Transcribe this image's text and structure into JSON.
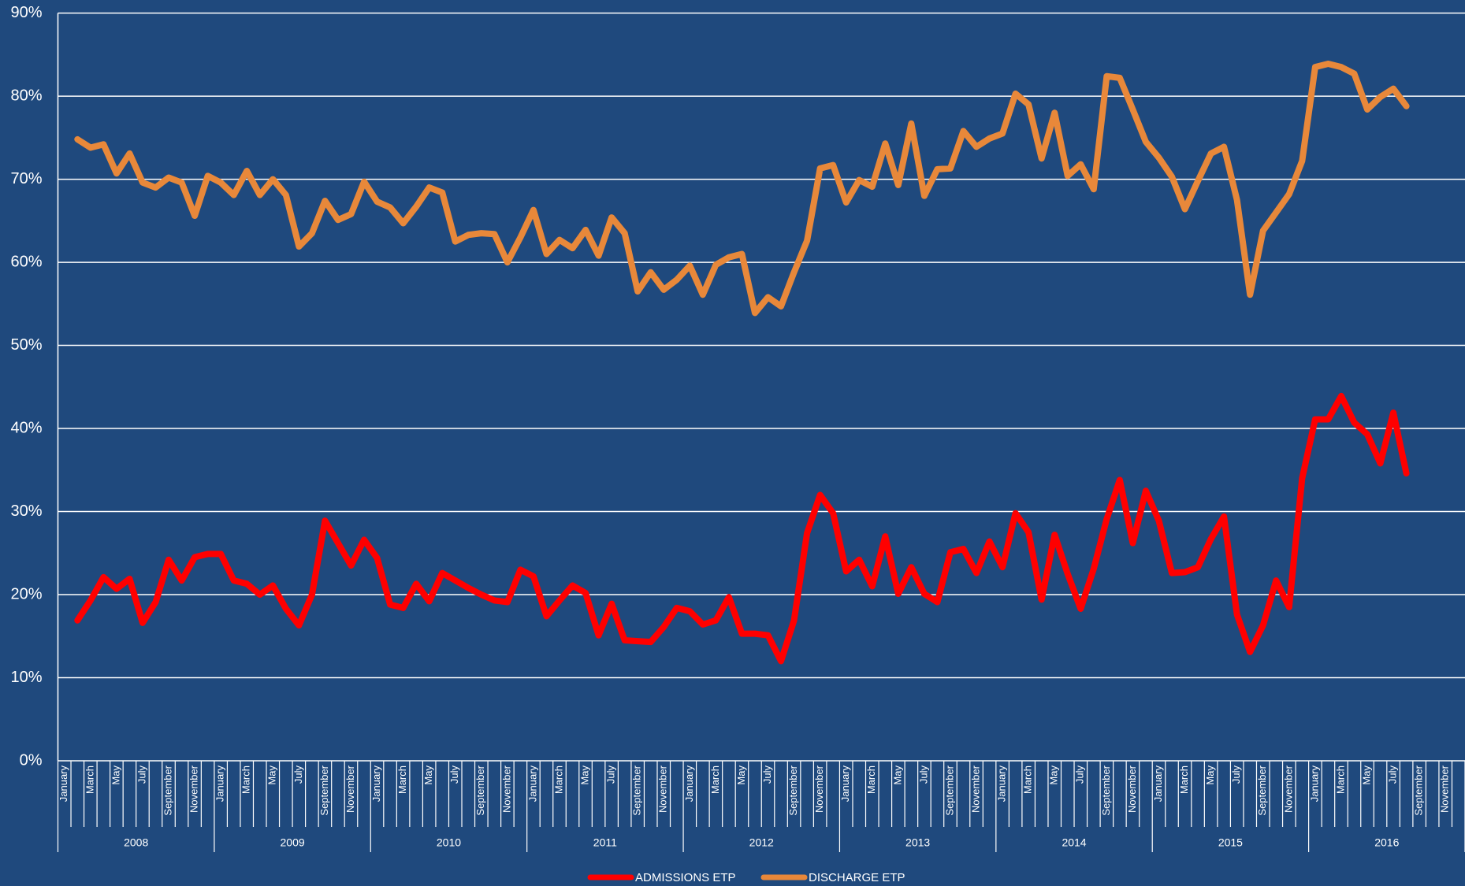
{
  "chart_data": {
    "type": "line",
    "categories": [
      "January",
      null,
      "March",
      null,
      "May",
      null,
      "July",
      null,
      "September",
      null,
      "November",
      null,
      "January",
      null,
      "March",
      null,
      "May",
      null,
      "July",
      null,
      "September",
      null,
      "November",
      null,
      "January",
      null,
      "March",
      null,
      "May",
      null,
      "July",
      null,
      "September",
      null,
      "November",
      null,
      "January",
      null,
      "March",
      null,
      "May",
      null,
      "July",
      null,
      "September",
      null,
      "November",
      null,
      "January",
      null,
      "March",
      null,
      "May",
      null,
      "July",
      null,
      "September",
      null,
      "November",
      null,
      "January",
      null,
      "March",
      null,
      "May",
      null,
      "July",
      null,
      "September",
      null,
      "November",
      null,
      "January",
      null,
      "March",
      null,
      "May",
      null,
      "July",
      null,
      "September",
      null,
      "November",
      null,
      "January",
      null,
      "March",
      null,
      "May",
      null,
      "July",
      null,
      "September",
      null,
      "November",
      null,
      "January",
      null,
      "March",
      null,
      "May",
      null,
      "July",
      null,
      "September",
      null,
      "November",
      null
    ],
    "years": [
      "2008",
      "2009",
      "2010",
      "2011",
      "2012",
      "2013",
      "2014",
      "2015",
      "2016"
    ],
    "series": [
      {
        "name": "ADMISSIONS ETP",
        "color": "#ff0000",
        "values": [
          null,
          16.9,
          19.3,
          22.1,
          20.7,
          21.9,
          16.6,
          19.1,
          24.2,
          21.7,
          24.5,
          24.9,
          24.9,
          21.7,
          21.3,
          20.0,
          21.1,
          18.3,
          16.3,
          20.0,
          28.9,
          26.2,
          23.5,
          26.6,
          24.4,
          18.8,
          18.4,
          21.3,
          19.2,
          22.6,
          21.7,
          20.8,
          20.0,
          19.3,
          19.1,
          23.0,
          22.2,
          17.4,
          19.3,
          21.1,
          20.2,
          15.1,
          18.9,
          14.5,
          14.4,
          14.3,
          16.1,
          18.4,
          18.0,
          16.4,
          16.9,
          19.7,
          15.3,
          15.3,
          15.1,
          12.0,
          16.9,
          27.4,
          32.0,
          29.8,
          22.8,
          24.2,
          21.0,
          27.0,
          20.1,
          23.3,
          20.1,
          19.1,
          25.1,
          25.5,
          22.6,
          26.4,
          23.3,
          29.8,
          27.5,
          19.4,
          27.2,
          22.5,
          18.3,
          23.1,
          29.1,
          33.8,
          26.2,
          32.5,
          28.9,
          22.6,
          22.7,
          23.3,
          26.7,
          29.4,
          17.6,
          13.1,
          16.3,
          21.7,
          18.5,
          34.0,
          41.1,
          41.1,
          43.9,
          40.7,
          39.3,
          35.8,
          41.9,
          34.6,
          null,
          null,
          null,
          null
        ]
      },
      {
        "name": "DISCHARGE ETP",
        "color": "#e8883a",
        "values": [
          null,
          74.8,
          73.8,
          74.2,
          70.7,
          73.1,
          69.6,
          69.0,
          70.2,
          69.6,
          65.6,
          70.4,
          69.6,
          68.1,
          71.0,
          68.1,
          70.0,
          68.1,
          61.9,
          63.5,
          67.4,
          65.1,
          65.8,
          69.7,
          67.3,
          66.6,
          64.7,
          66.7,
          69.0,
          68.4,
          62.5,
          63.3,
          63.5,
          63.4,
          60.0,
          63.0,
          66.3,
          61.0,
          62.7,
          61.7,
          63.9,
          60.8,
          65.4,
          63.5,
          56.5,
          58.8,
          56.7,
          57.9,
          59.6,
          56.1,
          59.7,
          60.6,
          61.0,
          53.9,
          55.8,
          54.7,
          58.8,
          62.6,
          71.3,
          71.7,
          67.2,
          69.9,
          69.1,
          74.3,
          69.3,
          76.7,
          68.0,
          71.2,
          71.3,
          75.8,
          73.9,
          74.9,
          75.5,
          80.3,
          79.0,
          72.5,
          78.0,
          70.4,
          71.8,
          68.8,
          82.4,
          82.2,
          78.4,
          74.5,
          72.6,
          70.3,
          66.4,
          69.8,
          73.1,
          73.9,
          67.5,
          56.1,
          63.8,
          66.0,
          68.2,
          72.2,
          83.5,
          83.9,
          83.5,
          82.7,
          78.4,
          79.9,
          80.9,
          78.8,
          null,
          null,
          null,
          null
        ]
      }
    ],
    "ylim": [
      0,
      90
    ],
    "yticks": [
      {
        "value": 0,
        "label": "0%"
      },
      {
        "value": 10,
        "label": "10%"
      },
      {
        "value": 20,
        "label": "20%"
      },
      {
        "value": 30,
        "label": "30%"
      },
      {
        "value": 40,
        "label": "40%"
      },
      {
        "value": 50,
        "label": "50%"
      },
      {
        "value": 60,
        "label": "60%"
      },
      {
        "value": 70,
        "label": "70%"
      },
      {
        "value": 80,
        "label": "80%"
      },
      {
        "value": 90,
        "label": "90%"
      }
    ],
    "grid": true
  }
}
